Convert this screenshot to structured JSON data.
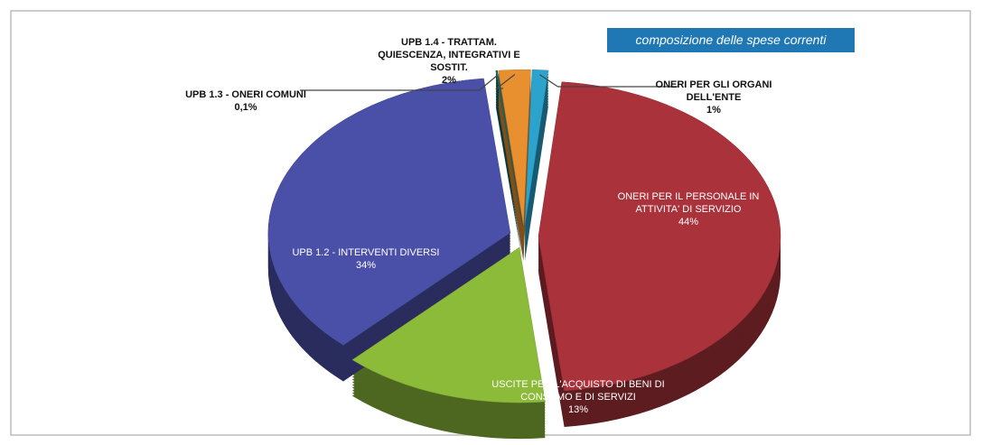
{
  "chart_data": {
    "type": "pie",
    "title": "composizione delle spese correnti",
    "categories": [
      "ONERI PER GLI ORGANI DELL'ENTE",
      "ONERI PER IL PERSONALE IN ATTIVITA' DI SERVIZIO",
      "USCITE PER L'ACQUISTO DI BENI DI CONSUMO E DI SERVIZI",
      "UPB 1.2 - INTERVENTI DIVERSI",
      "UPB 1.3 - ONERI COMUNI",
      "UPB 1.4 - TRATTAM. QUIESCENZA, INTEGRATIVI E SOSTIT."
    ],
    "values": [
      1,
      44,
      13,
      34,
      0.1,
      2
    ],
    "value_labels": [
      "1%",
      "44%",
      "13%",
      "34%",
      "0,1%",
      "2%"
    ],
    "colors": [
      "#2ba3cc",
      "#a9323b",
      "#8cbb3a",
      "#4a50a8",
      "#17686a",
      "#e8902f"
    ]
  }
}
